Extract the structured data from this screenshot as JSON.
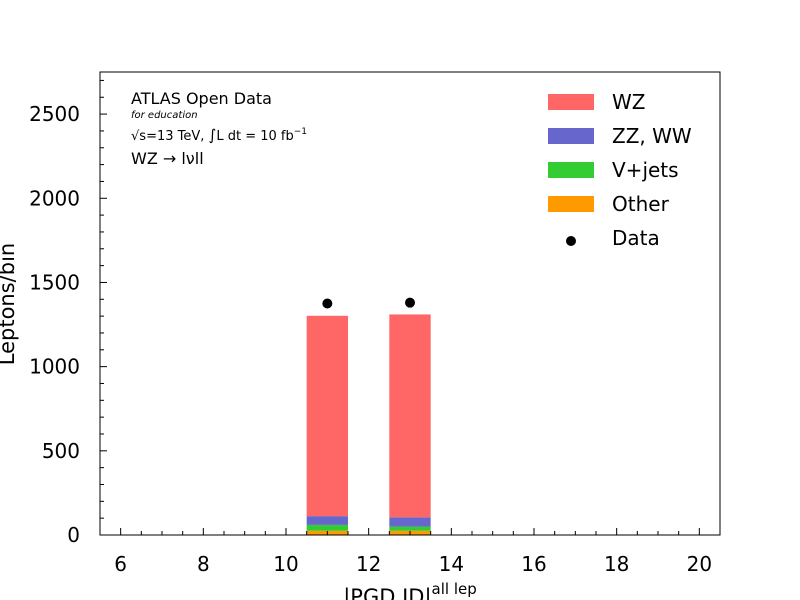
{
  "chart_data": {
    "type": "bar",
    "stacked": true,
    "annotations": {
      "experiment": "ATLAS Open Data",
      "sub": "for education",
      "energy_sqrt": "√s",
      "energy_rest": "=13 TeV, ",
      "lumi_integral": "∫",
      "lumi_rest": "L dt = 10 fb",
      "lumi_exp": "−1",
      "process": "WZ → lνll"
    },
    "xlabel": "|PGD ID|",
    "xlabel_sup": "all lep",
    "ylabel": "Leptons/bin",
    "xlim": [
      5.5,
      20.5
    ],
    "ylim": [
      0,
      2750
    ],
    "xticks": [
      6,
      8,
      10,
      12,
      14,
      16,
      18,
      20
    ],
    "yticks": [
      0,
      500,
      1000,
      1500,
      2000,
      2500
    ],
    "bin_edges": [
      [
        10.5,
        11.5
      ],
      [
        12.5,
        13.5
      ]
    ],
    "series": [
      {
        "name": "WZ",
        "color": "#ff6666",
        "values": [
          1190,
          1205
        ]
      },
      {
        "name": "ZZ, WW",
        "color": "#6666cc",
        "values": [
          52,
          55
        ]
      },
      {
        "name": "V+jets",
        "color": "#33cc33",
        "values": [
          35,
          25
        ]
      },
      {
        "name": "Other",
        "color": "#ff9900",
        "values": [
          25,
          25
        ]
      }
    ],
    "data": {
      "name": "Data",
      "x": [
        11,
        13
      ],
      "y": [
        1375,
        1380
      ]
    },
    "legend_position": "top-right",
    "grid": false
  }
}
